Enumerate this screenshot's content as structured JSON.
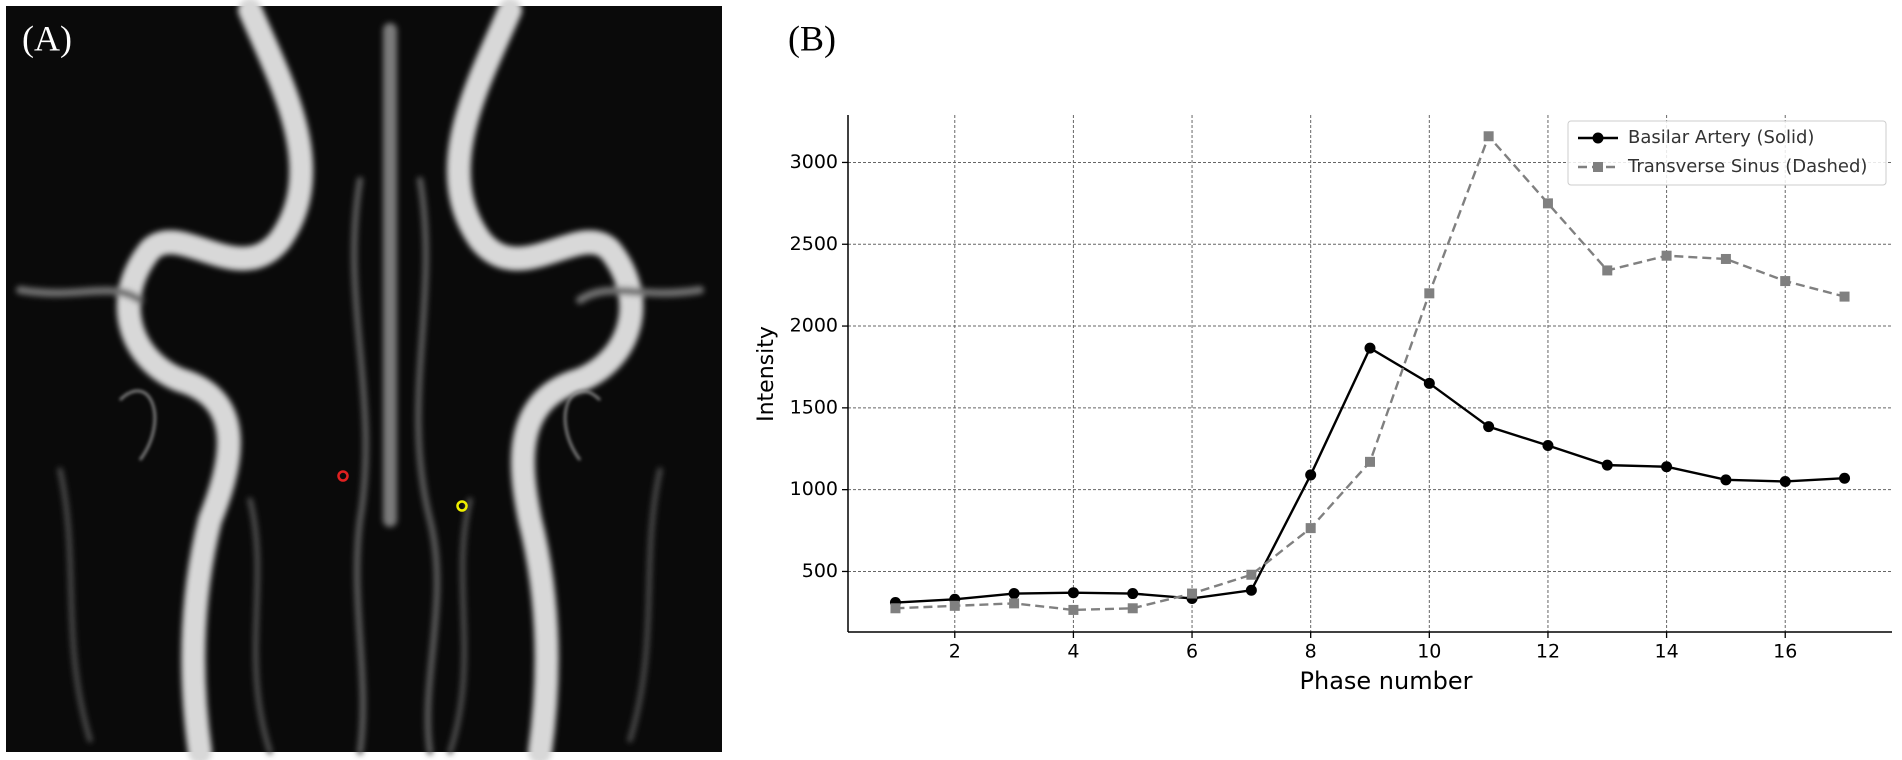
{
  "figure": {
    "panel_a_label": "(A)",
    "panel_b_label": "(B)"
  },
  "chart_data": {
    "type": "line",
    "x_label": "Phase number",
    "y_label": "Intensity",
    "x": [
      1,
      2,
      3,
      4,
      5,
      6,
      7,
      8,
      9,
      10,
      11,
      12,
      13,
      14,
      15,
      16,
      17
    ],
    "series": [
      {
        "name": "Basilar Artery (Solid)",
        "color": "#000000",
        "marker": "circle",
        "dash": "solid",
        "values": [
          310,
          330,
          365,
          370,
          365,
          335,
          385,
          1090,
          1865,
          1650,
          1385,
          1270,
          1150,
          1140,
          1060,
          1050,
          1070
        ]
      },
      {
        "name": "Transverse Sinus (Dashed)",
        "color": "#808080",
        "marker": "square",
        "dash": "dashed",
        "values": [
          275,
          290,
          305,
          265,
          275,
          365,
          480,
          765,
          1170,
          2200,
          3160,
          2750,
          2340,
          2430,
          2410,
          2275,
          2180
        ]
      }
    ],
    "xlim": [
      0.2,
      17.8
    ],
    "ylim": [
      130,
      3290
    ],
    "xticks": [
      2,
      4,
      6,
      8,
      10,
      12,
      14,
      16
    ],
    "yticks": [
      500,
      1000,
      1500,
      2000,
      2500,
      3000
    ],
    "grid": true,
    "legend": "upper right"
  }
}
